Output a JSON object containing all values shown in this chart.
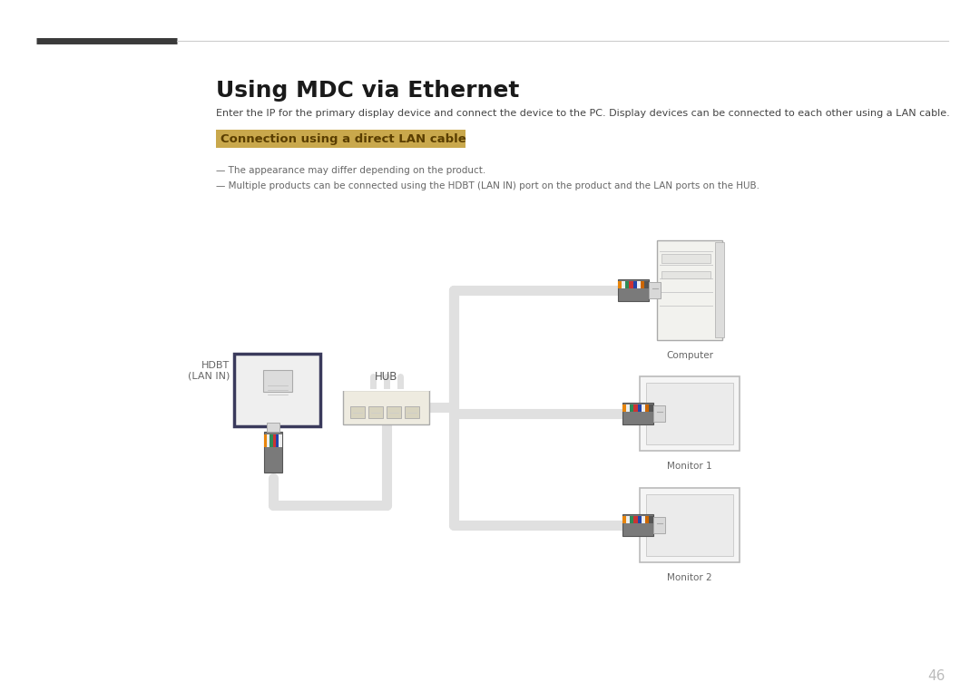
{
  "title": "Using MDC via Ethernet",
  "subtitle": "Enter the IP for the primary display device and connect the device to the PC. Display devices can be connected to each other using a LAN cable.",
  "section_title": "Connection using a direct LAN cable",
  "section_bg": "#C9A84C",
  "section_text_color": "#5A3E00",
  "note1": "— The appearance may differ depending on the product.",
  "note2": "— Multiple products can be connected using the HDBT (LAN IN) port on the product and the LAN ports on the HUB.",
  "label_hdbt": "HDBT\n(LAN IN)",
  "label_hub": "HUB",
  "label_computer": "Computer",
  "label_monitor1": "Monitor 1",
  "label_monitor2": "Monitor 2",
  "page_number": "46",
  "bg_color": "#FFFFFF",
  "cable_color": "#E0E0E0",
  "panel_border": "#3A3A5C",
  "gray_text": "#666666",
  "dark_text": "#222222"
}
